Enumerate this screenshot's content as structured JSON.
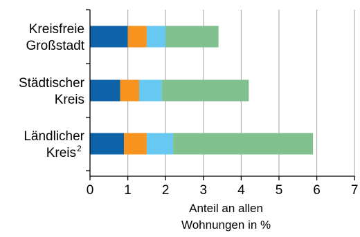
{
  "chart_data": {
    "type": "bar",
    "orientation": "horizontal",
    "stacked": true,
    "categories": [
      {
        "lines": [
          "Kreisfreie",
          "Großstadt"
        ],
        "superscript": ""
      },
      {
        "lines": [
          "Städtischer",
          "Kreis"
        ],
        "superscript": ""
      },
      {
        "lines": [
          "Ländlicher",
          "Kreis"
        ],
        "superscript": "2"
      }
    ],
    "series": [
      {
        "color": "#0e63a8",
        "values": [
          1.0,
          0.8,
          0.9
        ]
      },
      {
        "color": "#f7931e",
        "values": [
          0.5,
          0.5,
          0.6
        ]
      },
      {
        "color": "#67c8f2",
        "values": [
          0.5,
          0.6,
          0.7
        ]
      },
      {
        "color": "#80c18f",
        "values": [
          1.4,
          2.3,
          3.7
        ]
      }
    ],
    "xlim": [
      0,
      7
    ],
    "xticks": [
      "0",
      "1",
      "2",
      "3",
      "4",
      "5",
      "6",
      "7"
    ],
    "xlabel_lines": [
      "Anteil an allen",
      "Wohnungen in %"
    ],
    "grid": "vertical",
    "legend": "none"
  }
}
